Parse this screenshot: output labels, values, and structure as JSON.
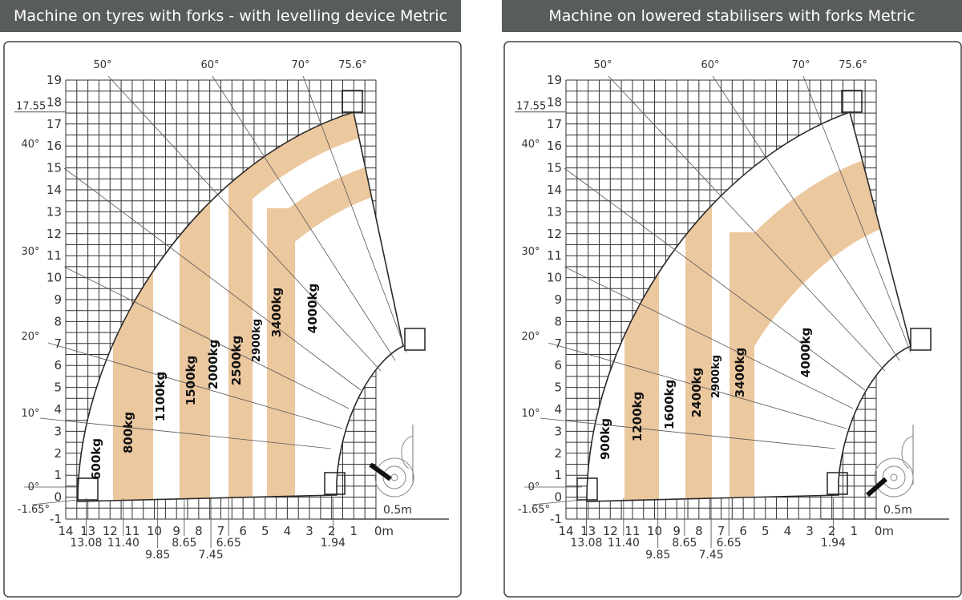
{
  "colors": {
    "band": "#ecc89f",
    "header": "#595d59",
    "grid": "#333333",
    "outline": "#2a2a2a"
  },
  "panels": [
    {
      "title": "Machine on tyres with forks - with levelling device Metric",
      "loads": [
        "600kg",
        "800kg",
        "1100kg",
        "1500kg",
        "2000kg",
        "2500kg",
        "2900kg",
        "3400kg",
        "4000kg"
      ],
      "angles": [
        "50°",
        "60°",
        "70°",
        "75.6°",
        "40°",
        "30°",
        "20°",
        "10°",
        "0°",
        "-1.65°"
      ],
      "max_height_label": "17.55",
      "y_ticks": [
        "19",
        "18",
        "17",
        "16",
        "15",
        "14",
        "13",
        "12",
        "11",
        "10",
        "9",
        "8",
        "7",
        "6",
        "5",
        "4",
        "3",
        "2",
        "1",
        "0",
        "-1"
      ],
      "x_ticks": [
        "14",
        "13",
        "12",
        "11",
        "10",
        "9",
        "8",
        "7",
        "6",
        "5",
        "4",
        "3",
        "2",
        "1",
        "0m"
      ],
      "x_marks": [
        "13.08",
        "11.40",
        "9.85",
        "8.65",
        "7.45",
        "6.65",
        "1.94"
      ],
      "scale_label": "0.5m"
    },
    {
      "title": "Machine on lowered stabilisers with forks Metric",
      "loads": [
        "900kg",
        "1200kg",
        "1600kg",
        "2400kg",
        "2900kg",
        "3400kg",
        "4000kg"
      ],
      "angles": [
        "50°",
        "60°",
        "70°",
        "75.6°",
        "40°",
        "30°",
        "20°",
        "10°",
        "0°",
        "-1.65°"
      ],
      "max_height_label": "17.55",
      "y_ticks": [
        "19",
        "18",
        "17",
        "16",
        "15",
        "14",
        "13",
        "12",
        "11",
        "10",
        "9",
        "8",
        "7",
        "6",
        "5",
        "4",
        "3",
        "2",
        "1",
        "0",
        "-1"
      ],
      "x_ticks": [
        "14",
        "13",
        "12",
        "11",
        "10",
        "9",
        "8",
        "7",
        "6",
        "5",
        "4",
        "3",
        "2",
        "1",
        "0m"
      ],
      "x_marks": [
        "13.08",
        "11.40",
        "9.85",
        "8.65",
        "7.45",
        "6.65",
        "1.94"
      ],
      "scale_label": "0.5m"
    }
  ]
}
